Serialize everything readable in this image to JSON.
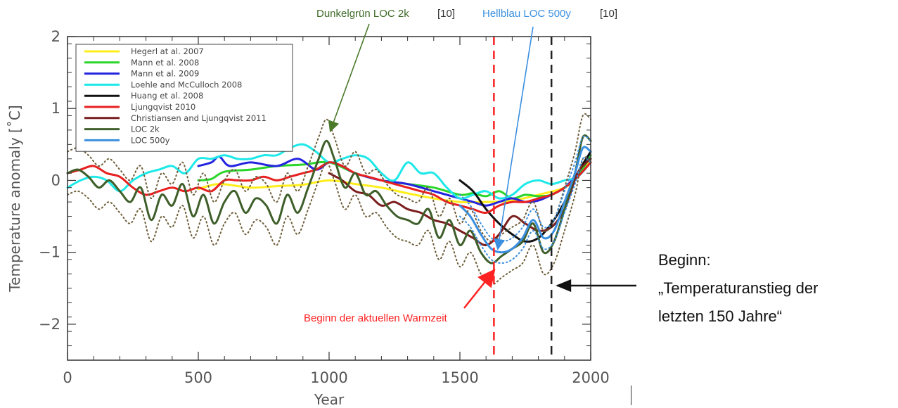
{
  "chart_data": {
    "type": "line",
    "xlabel": "Year",
    "ylabel": "Temperature anomaly [˚C]",
    "xlim": [
      0,
      2000
    ],
    "ylim": [
      -2.5,
      2.0
    ],
    "x_ticks": [
      0,
      500,
      1000,
      1500,
      2000
    ],
    "y_ticks": [
      -2,
      -1,
      0,
      1,
      2
    ],
    "y_tick_labels": [
      "−2",
      "−1",
      "0",
      "1",
      "2"
    ],
    "grid": false,
    "legend_position": "top-left",
    "series": [
      {
        "name": "Hegerl at al. 2007",
        "color": "#ffee1a",
        "style": "solid",
        "x": [
          500,
          580,
          700,
          800,
          900,
          1000,
          1100,
          1200,
          1300,
          1400,
          1500,
          1600,
          1700,
          1800,
          1900,
          1950,
          2000
        ],
        "y": [
          -0.12,
          -0.05,
          -0.1,
          -0.08,
          -0.06,
          0.0,
          -0.05,
          -0.1,
          -0.18,
          -0.25,
          -0.3,
          -0.3,
          -0.28,
          -0.2,
          -0.1,
          0.05,
          0.3
        ]
      },
      {
        "name": "Mann et al. 2008",
        "color": "#2ad62a",
        "style": "solid",
        "x": [
          500,
          550,
          600,
          700,
          800,
          900,
          1000,
          1100,
          1200,
          1300,
          1400,
          1500,
          1550,
          1600,
          1650,
          1700,
          1750,
          1800,
          1850,
          1900,
          1950,
          2000
        ],
        "y": [
          0.0,
          0.02,
          0.12,
          0.15,
          0.2,
          0.22,
          0.25,
          0.1,
          0.0,
          -0.05,
          -0.1,
          -0.2,
          -0.18,
          -0.22,
          -0.15,
          -0.25,
          -0.2,
          -0.22,
          -0.2,
          -0.1,
          0.05,
          0.35
        ]
      },
      {
        "name": "Mann et al. 2009",
        "color": "#2424e0",
        "style": "solid",
        "x": [
          500,
          550,
          580,
          620,
          700,
          800,
          880,
          950,
          1000,
          1050,
          1100,
          1200,
          1300,
          1400,
          1500,
          1550,
          1600,
          1650,
          1700,
          1750,
          1800,
          1850,
          1900,
          1950,
          2000
        ],
        "y": [
          0.2,
          0.25,
          0.33,
          0.2,
          0.25,
          0.2,
          0.3,
          0.15,
          0.25,
          0.2,
          0.1,
          0.0,
          -0.05,
          -0.15,
          -0.25,
          -0.3,
          -0.35,
          -0.3,
          -0.25,
          -0.3,
          -0.28,
          -0.2,
          -0.1,
          0.1,
          0.4
        ]
      },
      {
        "name": "Loehle and McCulloch 2008",
        "color": "#1ee8e8",
        "style": "solid",
        "x": [
          0,
          50,
          100,
          150,
          200,
          250,
          300,
          350,
          400,
          450,
          500,
          550,
          600,
          650,
          700,
          750,
          800,
          850,
          900,
          950,
          1000,
          1050,
          1100,
          1150,
          1200,
          1250,
          1300,
          1350,
          1400,
          1450,
          1500,
          1550,
          1600,
          1650,
          1700,
          1750,
          1800,
          1850,
          1900,
          1950,
          2000
        ],
        "y": [
          -0.1,
          0.0,
          0.05,
          0.0,
          -0.15,
          0.0,
          0.1,
          0.15,
          0.2,
          0.1,
          0.3,
          0.3,
          0.35,
          0.3,
          0.3,
          0.35,
          0.35,
          0.45,
          0.5,
          0.4,
          0.25,
          0.3,
          0.35,
          0.3,
          0.1,
          0.0,
          0.25,
          0.1,
          0.1,
          -0.1,
          -0.25,
          -0.2,
          -0.15,
          -0.25,
          -0.2,
          -0.05,
          0.0,
          -0.05,
          0.0,
          0.05,
          0.25
        ]
      },
      {
        "name": "Huang et al. 2008",
        "color": "#111111",
        "style": "solid",
        "x": [
          1500,
          1550,
          1600,
          1650,
          1700,
          1750,
          1800,
          1850,
          1900,
          1950,
          2000
        ],
        "y": [
          0.0,
          -0.15,
          -0.4,
          -0.6,
          -0.75,
          -0.85,
          -0.8,
          -0.6,
          -0.3,
          0.1,
          0.4
        ]
      },
      {
        "name": "Ljungqvist 2010",
        "color": "#e82020",
        "style": "solid",
        "x": [
          0,
          50,
          100,
          150,
          200,
          250,
          300,
          350,
          400,
          450,
          500,
          550,
          600,
          650,
          700,
          750,
          800,
          850,
          900,
          950,
          1000,
          1050,
          1100,
          1150,
          1200,
          1250,
          1300,
          1350,
          1400,
          1450,
          1500,
          1550,
          1600,
          1650,
          1700,
          1750,
          1800,
          1850,
          1900,
          1950,
          2000
        ],
        "y": [
          0.1,
          0.15,
          0.2,
          0.1,
          0.05,
          -0.1,
          -0.2,
          -0.15,
          -0.1,
          -0.15,
          -0.1,
          -0.15,
          0.0,
          0.0,
          0.0,
          0.05,
          0.0,
          0.05,
          0.1,
          0.15,
          0.25,
          0.2,
          0.1,
          0.05,
          0.0,
          -0.05,
          -0.1,
          -0.15,
          -0.2,
          -0.3,
          -0.35,
          -0.4,
          -0.45,
          -0.35,
          -0.3,
          -0.3,
          -0.25,
          -0.2,
          -0.1,
          0.05,
          0.25
        ]
      },
      {
        "name": "Christiansen and Ljungqvist 2011",
        "color": "#7a1e1e",
        "style": "solid",
        "x": [
          1000,
          1050,
          1100,
          1150,
          1200,
          1250,
          1300,
          1350,
          1400,
          1450,
          1500,
          1550,
          1600,
          1650,
          1700,
          1750,
          1800,
          1850,
          1900,
          1950,
          2000
        ],
        "y": [
          0.1,
          0.0,
          -0.15,
          -0.2,
          -0.35,
          -0.3,
          -0.4,
          -0.45,
          -0.55,
          -0.6,
          -0.7,
          -0.8,
          -0.9,
          -0.75,
          -0.5,
          -0.6,
          -0.7,
          -0.65,
          -0.4,
          0.1,
          0.3
        ]
      },
      {
        "name": "LOC 2k",
        "color": "#3f5f2a",
        "style": "solid",
        "x": [
          0,
          40,
          80,
          120,
          160,
          200,
          240,
          280,
          320,
          360,
          400,
          440,
          480,
          520,
          560,
          600,
          640,
          680,
          720,
          760,
          800,
          840,
          880,
          920,
          960,
          990,
          1020,
          1060,
          1100,
          1140,
          1180,
          1220,
          1260,
          1300,
          1340,
          1380,
          1420,
          1460,
          1500,
          1540,
          1580,
          1620,
          1660,
          1700,
          1740,
          1780,
          1820,
          1860,
          1900,
          1940,
          1970,
          2000
        ],
        "y": [
          0.1,
          0.15,
          0.05,
          -0.1,
          0.0,
          -0.15,
          -0.3,
          -0.1,
          -0.55,
          -0.2,
          -0.35,
          -0.05,
          -0.5,
          -0.2,
          -0.6,
          -0.3,
          -0.15,
          -0.45,
          -0.25,
          -0.35,
          -0.6,
          -0.2,
          -0.45,
          -0.1,
          0.3,
          0.55,
          0.3,
          -0.1,
          0.1,
          -0.2,
          -0.15,
          -0.35,
          -0.5,
          -0.55,
          -0.6,
          -0.4,
          -0.8,
          -0.55,
          -0.9,
          -0.7,
          -1.0,
          -1.15,
          -1.05,
          -0.95,
          -0.85,
          -0.6,
          -1.0,
          -0.85,
          -0.4,
          0.1,
          0.6,
          0.55
        ]
      },
      {
        "name": "LOC 500y",
        "color": "#3a8fe0",
        "style": "solid",
        "x": [
          1500,
          1540,
          1580,
          1620,
          1660,
          1700,
          1740,
          1780,
          1820,
          1860,
          1900,
          1940,
          1970,
          2000
        ],
        "y": [
          -0.35,
          -0.5,
          -0.75,
          -0.95,
          -1.0,
          -0.95,
          -0.8,
          -0.55,
          -0.8,
          -0.7,
          -0.3,
          0.1,
          0.45,
          0.4
        ]
      },
      {
        "name": "",
        "color": "#6e5e3a",
        "style": "dotted",
        "x": [
          0,
          40,
          80,
          120,
          160,
          200,
          240,
          280,
          320,
          360,
          400,
          440,
          480,
          520,
          560,
          600,
          640,
          680,
          720,
          760,
          800,
          840,
          880,
          920,
          960,
          990,
          1020,
          1060,
          1100,
          1140,
          1180,
          1220,
          1260,
          1300,
          1340,
          1380,
          1420,
          1460,
          1500,
          1540,
          1580,
          1620,
          1660,
          1700,
          1740,
          1780,
          1820,
          1860,
          1900,
          1940,
          1970,
          2000
        ],
        "y": [
          0.4,
          0.45,
          0.35,
          0.2,
          0.3,
          0.15,
          0.0,
          0.2,
          -0.25,
          0.1,
          -0.05,
          0.25,
          -0.2,
          0.1,
          -0.3,
          0.0,
          0.15,
          -0.15,
          0.05,
          -0.05,
          -0.3,
          0.1,
          -0.15,
          0.2,
          0.6,
          0.85,
          0.6,
          0.2,
          0.4,
          0.1,
          0.15,
          -0.05,
          -0.2,
          -0.25,
          -0.3,
          -0.1,
          -0.5,
          -0.25,
          -0.6,
          -0.4,
          -0.7,
          -0.85,
          -0.75,
          -0.65,
          -0.55,
          -0.3,
          -0.7,
          -0.55,
          -0.1,
          0.4,
          0.9,
          0.85
        ]
      },
      {
        "name": "",
        "color": "#6e5e3a",
        "style": "dotted",
        "x": [
          0,
          40,
          80,
          120,
          160,
          200,
          240,
          280,
          320,
          360,
          400,
          440,
          480,
          520,
          560,
          600,
          640,
          680,
          720,
          760,
          800,
          840,
          880,
          920,
          960,
          990,
          1020,
          1060,
          1100,
          1140,
          1180,
          1220,
          1260,
          1300,
          1340,
          1380,
          1420,
          1460,
          1500,
          1540,
          1580,
          1620,
          1660,
          1700,
          1740,
          1780,
          1820,
          1860,
          1900,
          1940,
          1970,
          2000
        ],
        "y": [
          -0.2,
          -0.15,
          -0.25,
          -0.4,
          -0.3,
          -0.45,
          -0.6,
          -0.4,
          -0.85,
          -0.5,
          -0.65,
          -0.35,
          -0.8,
          -0.5,
          -0.9,
          -0.6,
          -0.45,
          -0.75,
          -0.55,
          -0.65,
          -0.9,
          -0.5,
          -0.75,
          -0.4,
          0.0,
          0.25,
          0.0,
          -0.4,
          -0.2,
          -0.5,
          -0.45,
          -0.65,
          -0.8,
          -0.85,
          -0.9,
          -0.7,
          -1.1,
          -0.85,
          -1.2,
          -1.0,
          -1.3,
          -1.45,
          -1.35,
          -1.25,
          -1.15,
          -0.9,
          -1.3,
          -1.15,
          -0.7,
          -0.2,
          0.3,
          0.25
        ]
      },
      {
        "name": "",
        "color": "#3a8fe0",
        "style": "dotted",
        "x": [
          1500,
          1540,
          1580,
          1620,
          1660,
          1700,
          1740,
          1780,
          1820,
          1860,
          1900,
          1940,
          1970,
          2000
        ],
        "y": [
          -0.2,
          -0.35,
          -0.6,
          -0.8,
          -0.85,
          -0.8,
          -0.65,
          -0.4,
          -0.65,
          -0.55,
          -0.15,
          0.25,
          0.6,
          0.55
        ]
      },
      {
        "name": "",
        "color": "#3a8fe0",
        "style": "dotted",
        "x": [
          1500,
          1540,
          1580,
          1620,
          1660,
          1700,
          1740,
          1780,
          1820,
          1860,
          1900,
          1940,
          1970,
          2000
        ],
        "y": [
          -0.5,
          -0.65,
          -0.9,
          -1.1,
          -1.15,
          -1.1,
          -0.95,
          -0.7,
          -0.95,
          -0.85,
          -0.45,
          -0.05,
          0.3,
          0.25
        ]
      }
    ],
    "vlines": [
      {
        "x": 1630,
        "color": "#ff2222",
        "style": "dashed"
      },
      {
        "x": 1850,
        "color": "#222222",
        "style": "dashed"
      }
    ],
    "annotations": {
      "dark_green": {
        "label": "Dunkelgrün LOC 2k",
        "ref": "[10]",
        "color": "#3f6b2a",
        "target_x": 995,
        "target_y": 0.6
      },
      "light_blue": {
        "label": "Hellblau LOC 500y",
        "ref": "[10]",
        "color": "#3a8fe0",
        "target_x": 1640,
        "target_y": -1.0
      },
      "warm_start": {
        "label": "Beginn der aktuellen Warmzeit",
        "color": "#ff2222",
        "target_x": 1630,
        "target_y": -1.15
      }
    }
  },
  "side_note": {
    "line1": "Beginn:",
    "line2": "„Temperaturanstieg der",
    "line3": "letzten 150 Jahre“"
  }
}
